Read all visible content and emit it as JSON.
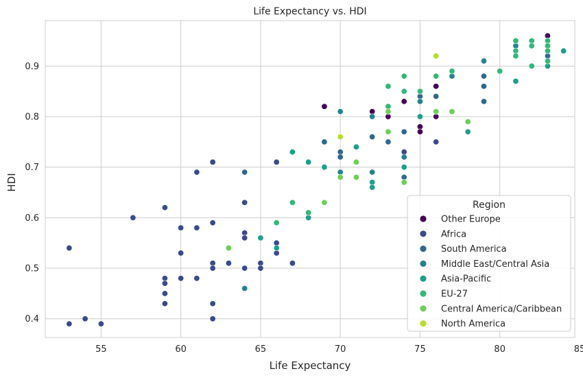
{
  "chart_data": {
    "type": "scatter",
    "title": "Life Expectancy vs. HDI",
    "xlabel": "Life Expectancy",
    "ylabel": "HDI",
    "xlim": [
      51.5,
      84.7
    ],
    "ylim": [
      0.363,
      0.99
    ],
    "xticks": [
      55,
      60,
      65,
      70,
      75,
      80,
      85
    ],
    "yticks": [
      0.4,
      0.5,
      0.6,
      0.7,
      0.8,
      0.9
    ],
    "xtick_labels": [
      "55",
      "60",
      "65",
      "70",
      "75",
      "80",
      "85"
    ],
    "ytick_labels": [
      "0.4",
      "0.5",
      "0.6",
      "0.7",
      "0.8",
      "0.9"
    ],
    "grid": true,
    "legend": {
      "title": "Region",
      "position": "lower-right"
    },
    "series": [
      {
        "name": "Other Europe",
        "color": "#440154",
        "points": [
          [
            83,
            0.96
          ],
          [
            81,
            0.93
          ],
          [
            76,
            0.86
          ],
          [
            76,
            0.8
          ],
          [
            75,
            0.78
          ],
          [
            75,
            0.77
          ],
          [
            74,
            0.83
          ],
          [
            73,
            0.8
          ],
          [
            72,
            0.81
          ],
          [
            69,
            0.82
          ]
        ]
      },
      {
        "name": "Africa",
        "color": "#3b4a8a",
        "points": [
          [
            53,
            0.54
          ],
          [
            53,
            0.39
          ],
          [
            54,
            0.4
          ],
          [
            55,
            0.39
          ],
          [
            57,
            0.6
          ],
          [
            59,
            0.62
          ],
          [
            59,
            0.48
          ],
          [
            59,
            0.47
          ],
          [
            59,
            0.45
          ],
          [
            59,
            0.43
          ],
          [
            60,
            0.58
          ],
          [
            60,
            0.53
          ],
          [
            60,
            0.48
          ],
          [
            61,
            0.69
          ],
          [
            61,
            0.58
          ],
          [
            61,
            0.48
          ],
          [
            62,
            0.71
          ],
          [
            62,
            0.59
          ],
          [
            62,
            0.51
          ],
          [
            62,
            0.5
          ],
          [
            62,
            0.43
          ],
          [
            62,
            0.4
          ],
          [
            63,
            0.51
          ],
          [
            64,
            0.63
          ],
          [
            64,
            0.57
          ],
          [
            64,
            0.56
          ],
          [
            64,
            0.5
          ],
          [
            65,
            0.51
          ],
          [
            65,
            0.5
          ],
          [
            66,
            0.71
          ],
          [
            66,
            0.55
          ],
          [
            66,
            0.53
          ],
          [
            67,
            0.51
          ],
          [
            74,
            0.73
          ],
          [
            74,
            0.67
          ],
          [
            76,
            0.75
          ]
        ]
      },
      {
        "name": "South America",
        "color": "#31688e",
        "points": [
          [
            64,
            0.69
          ],
          [
            69,
            0.75
          ],
          [
            70,
            0.73
          ],
          [
            70,
            0.72
          ],
          [
            72,
            0.76
          ],
          [
            73,
            0.75
          ],
          [
            74,
            0.77
          ],
          [
            74,
            0.68
          ],
          [
            75,
            0.84
          ],
          [
            76,
            0.84
          ],
          [
            79,
            0.88
          ],
          [
            79,
            0.86
          ],
          [
            79,
            0.83
          ],
          [
            83,
            0.94
          ],
          [
            83,
            0.92
          ]
        ]
      },
      {
        "name": "Middle East/Central Asia",
        "color": "#26828e",
        "points": [
          [
            64,
            0.46
          ],
          [
            70,
            0.81
          ],
          [
            70,
            0.69
          ],
          [
            72,
            0.8
          ],
          [
            72,
            0.69
          ],
          [
            74,
            0.72
          ],
          [
            75,
            0.83
          ],
          [
            77,
            0.88
          ],
          [
            79,
            0.91
          ],
          [
            81,
            0.94
          ],
          [
            83,
            0.95
          ]
        ]
      },
      {
        "name": "Asia-Pacific",
        "color": "#1f9e89",
        "points": [
          [
            65,
            0.56
          ],
          [
            66,
            0.54
          ],
          [
            67,
            0.73
          ],
          [
            68,
            0.71
          ],
          [
            68,
            0.6
          ],
          [
            69,
            0.7
          ],
          [
            71,
            0.74
          ],
          [
            72,
            0.67
          ],
          [
            72,
            0.66
          ],
          [
            74,
            0.7
          ],
          [
            75,
            0.8
          ],
          [
            78,
            0.77
          ],
          [
            81,
            0.87
          ],
          [
            84,
            0.93
          ],
          [
            83,
            0.9
          ]
        ]
      },
      {
        "name": "EU-27",
        "color": "#35b779",
        "points": [
          [
            66,
            0.59
          ],
          [
            67,
            0.63
          ],
          [
            68,
            0.61
          ],
          [
            73,
            0.86
          ],
          [
            73,
            0.82
          ],
          [
            74,
            0.88
          ],
          [
            74,
            0.85
          ],
          [
            75,
            0.85
          ],
          [
            76,
            0.88
          ],
          [
            77,
            0.89
          ],
          [
            80,
            0.89
          ],
          [
            81,
            0.95
          ],
          [
            81,
            0.93
          ],
          [
            81,
            0.92
          ],
          [
            82,
            0.95
          ],
          [
            82,
            0.94
          ],
          [
            82,
            0.9
          ],
          [
            83,
            0.95
          ],
          [
            83,
            0.94
          ],
          [
            83,
            0.93
          ],
          [
            83,
            0.91
          ]
        ]
      },
      {
        "name": "Central America/Caribbean",
        "color": "#6ece58",
        "points": [
          [
            63,
            0.54
          ],
          [
            69,
            0.63
          ],
          [
            70,
            0.68
          ],
          [
            71,
            0.71
          ],
          [
            71,
            0.68
          ],
          [
            73,
            0.81
          ],
          [
            73,
            0.77
          ],
          [
            74,
            0.67
          ],
          [
            76,
            0.81
          ],
          [
            77,
            0.81
          ],
          [
            78,
            0.79
          ]
        ]
      },
      {
        "name": "North America",
        "color": "#b5de2b",
        "points": [
          [
            70,
            0.76
          ],
          [
            76,
            0.92
          ]
        ]
      }
    ]
  }
}
